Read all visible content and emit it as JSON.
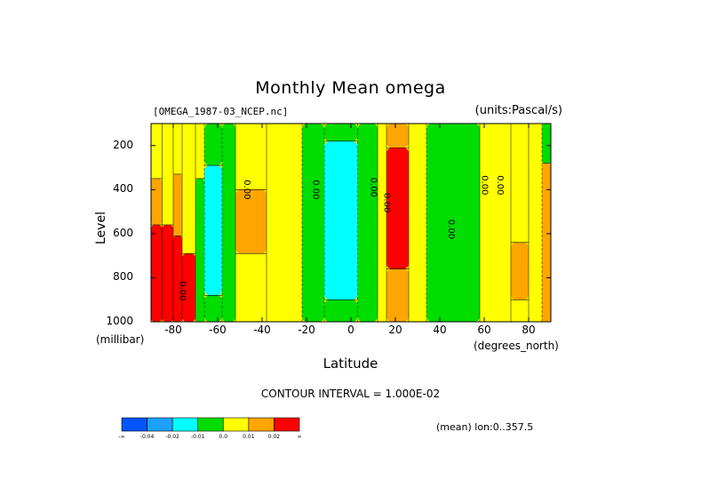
{
  "chart_data": {
    "type": "heatmap",
    "title": "Monthly Mean omega",
    "file_label": "[OMEGA_1987-03_NCEP.nc]",
    "units_label": "(units:Pascal/s)",
    "xlabel": "Latitude",
    "x_unit": "(degrees_north)",
    "ylabel": "Level",
    "y_unit": "(millibar)",
    "xlim": [
      -90,
      90
    ],
    "ylim": [
      100,
      1000
    ],
    "y_inverted": true,
    "x_ticks": [
      "-80",
      "-60",
      "-40",
      "-20",
      "0",
      "20",
      "40",
      "60",
      "80"
    ],
    "x_tick_values": [
      -80,
      -60,
      -40,
      -20,
      0,
      20,
      40,
      60,
      80
    ],
    "y_ticks": [
      "200",
      "400",
      "600",
      "800",
      "1000"
    ],
    "y_tick_values": [
      200,
      400,
      600,
      800,
      1000
    ],
    "contour_labels": [
      "0.00",
      "0.00",
      "0.00",
      "0.00",
      "0.00",
      "0.00",
      "0.00",
      "0.00"
    ],
    "contour_label_positions": [
      {
        "lat": -48,
        "level": 400
      },
      {
        "lat": -17,
        "level": 400
      },
      {
        "lat": 9,
        "level": 390
      },
      {
        "lat": 15,
        "level": 460
      },
      {
        "lat": 44,
        "level": 580
      },
      {
        "lat": 59,
        "level": 380
      },
      {
        "lat": 66,
        "level": 380
      },
      {
        "lat": -77,
        "level": 860
      }
    ],
    "bands": [
      {
        "lat": [
          -90,
          -85
        ],
        "zones": [
          {
            "top": 100,
            "bottom": 350,
            "v": 0
          },
          {
            "top": 350,
            "bottom": 560,
            "v": 0.015
          },
          {
            "top": 560,
            "bottom": 1000,
            "v": 0.03
          }
        ]
      },
      {
        "lat": [
          -85,
          -80
        ],
        "zones": [
          {
            "top": 100,
            "bottom": 560,
            "v": 0
          },
          {
            "top": 560,
            "bottom": 1000,
            "v": 0.025
          }
        ]
      },
      {
        "lat": [
          -80,
          -76
        ],
        "zones": [
          {
            "top": 100,
            "bottom": 330,
            "v": 0
          },
          {
            "top": 330,
            "bottom": 610,
            "v": 0.015
          },
          {
            "top": 610,
            "bottom": 1000,
            "v": 0.03
          }
        ]
      },
      {
        "lat": [
          -76,
          -70
        ],
        "zones": [
          {
            "top": 100,
            "bottom": 690,
            "v": 0
          },
          {
            "top": 690,
            "bottom": 1000,
            "v": 0.03
          }
        ]
      },
      {
        "lat": [
          -70,
          -66
        ],
        "zones": [
          {
            "top": 100,
            "bottom": 350,
            "v": 0
          },
          {
            "top": 350,
            "bottom": 1000,
            "v": -0.005
          }
        ]
      },
      {
        "lat": [
          -66,
          -58
        ],
        "zones": [
          {
            "top": 100,
            "bottom": 290,
            "v": -0.005
          },
          {
            "top": 290,
            "bottom": 880,
            "v": -0.015
          },
          {
            "top": 880,
            "bottom": 1000,
            "v": -0.005
          }
        ]
      },
      {
        "lat": [
          -58,
          -52
        ],
        "zones": [
          {
            "top": 100,
            "bottom": 1000,
            "v": -0.005
          }
        ]
      },
      {
        "lat": [
          -52,
          -38
        ],
        "zones": [
          {
            "top": 100,
            "bottom": 400,
            "v": 0
          },
          {
            "top": 400,
            "bottom": 690,
            "v": 0.015
          },
          {
            "top": 690,
            "bottom": 1000,
            "v": 0
          }
        ]
      },
      {
        "lat": [
          -38,
          -22
        ],
        "zones": [
          {
            "top": 100,
            "bottom": 1000,
            "v": 0
          }
        ]
      },
      {
        "lat": [
          -22,
          -12
        ],
        "zones": [
          {
            "top": 100,
            "bottom": 1000,
            "v": -0.005
          }
        ]
      },
      {
        "lat": [
          -12,
          3
        ],
        "zones": [
          {
            "top": 100,
            "bottom": 180,
            "v": -0.005
          },
          {
            "top": 180,
            "bottom": 900,
            "v": -0.015
          },
          {
            "top": 900,
            "bottom": 1000,
            "v": -0.005
          }
        ]
      },
      {
        "lat": [
          3,
          12
        ],
        "zones": [
          {
            "top": 100,
            "bottom": 1000,
            "v": -0.005
          }
        ]
      },
      {
        "lat": [
          12,
          16
        ],
        "zones": [
          {
            "top": 100,
            "bottom": 1000,
            "v": 0
          }
        ]
      },
      {
        "lat": [
          16,
          26
        ],
        "zones": [
          {
            "top": 100,
            "bottom": 210,
            "v": 0.015
          },
          {
            "top": 210,
            "bottom": 760,
            "v": 0.03
          },
          {
            "top": 760,
            "bottom": 1000,
            "v": 0.015
          }
        ]
      },
      {
        "lat": [
          26,
          34
        ],
        "zones": [
          {
            "top": 100,
            "bottom": 1000,
            "v": 0
          }
        ]
      },
      {
        "lat": [
          34,
          58
        ],
        "zones": [
          {
            "top": 100,
            "bottom": 1000,
            "v": -0.005
          }
        ]
      },
      {
        "lat": [
          58,
          72
        ],
        "zones": [
          {
            "top": 100,
            "bottom": 1000,
            "v": 0
          }
        ]
      },
      {
        "lat": [
          72,
          80
        ],
        "zones": [
          {
            "top": 100,
            "bottom": 640,
            "v": 0
          },
          {
            "top": 640,
            "bottom": 900,
            "v": 0.015
          },
          {
            "top": 900,
            "bottom": 1000,
            "v": 0
          }
        ]
      },
      {
        "lat": [
          80,
          86
        ],
        "zones": [
          {
            "top": 100,
            "bottom": 1000,
            "v": 0
          }
        ]
      },
      {
        "lat": [
          86,
          90
        ],
        "zones": [
          {
            "top": 100,
            "bottom": 280,
            "v": -0.005
          },
          {
            "top": 280,
            "bottom": 1000,
            "v": 0.015
          }
        ]
      }
    ],
    "colorbar": {
      "levels": [
        "-∞",
        "-0.04",
        "-0.02",
        "-0.01",
        "0.0",
        "0.01",
        "0.02",
        "∞"
      ],
      "colors": [
        "#0055ff",
        "#1ea0ff",
        "#00ffff",
        "#00dd00",
        "#ffff00",
        "#ffa500",
        "#ff0000"
      ],
      "thresholds": [
        -0.04,
        -0.02,
        -0.01,
        0.0,
        0.01,
        0.02
      ]
    },
    "contour_interval": "CONTOUR INTERVAL = 1.000E-02",
    "mean_label": "(mean) lon:0..357.5"
  }
}
